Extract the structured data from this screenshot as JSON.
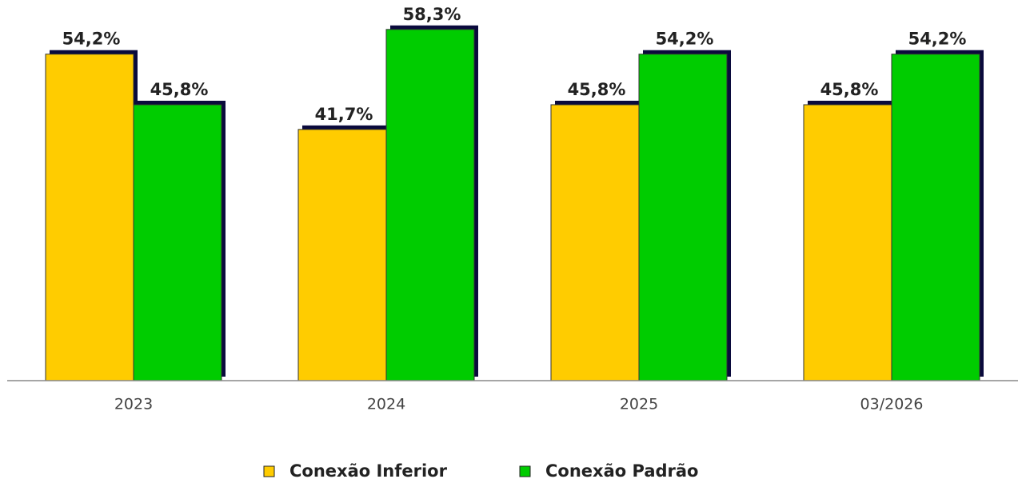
{
  "chart_data": {
    "type": "bar",
    "categories": [
      "2023",
      "2024",
      "2025",
      "03/2026"
    ],
    "series": [
      {
        "name": "Conexão Inferior",
        "color": "#ffcc00",
        "values": [
          54.2,
          41.7,
          45.8,
          45.8
        ],
        "value_labels": [
          "54,2%",
          "41,7%",
          "45,8%",
          "45,8%"
        ]
      },
      {
        "name": "Conexão Padrão",
        "color": "#00cc00",
        "values": [
          45.8,
          58.3,
          54.2,
          54.2
        ],
        "value_labels": [
          "45,8%",
          "58,3%",
          "54,2%",
          "54,2%"
        ]
      }
    ],
    "ylim": [
      0,
      60
    ],
    "legend": "bottom"
  }
}
